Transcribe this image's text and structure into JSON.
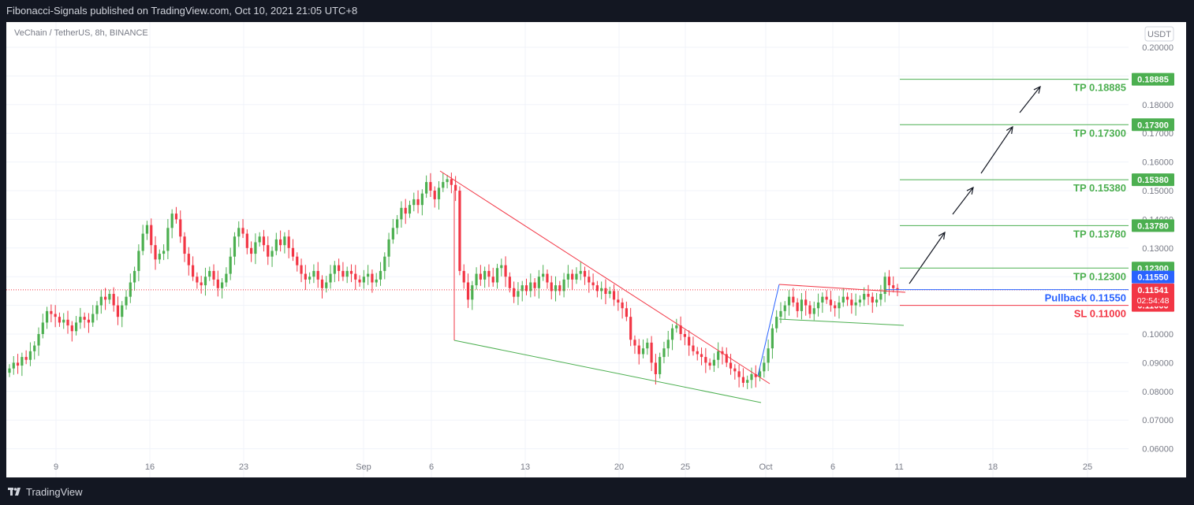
{
  "header": {
    "published_text": "Fibonacci-Signals published on TradingView.com, Oct 10, 2021 21:05 UTC+8"
  },
  "footer": {
    "brand": "TradingView",
    "logo_icon": "tradingview-logo-icon"
  },
  "chart_data": {
    "type": "candlestick",
    "symbol_label": "VeChain / TetherUS, 8h, BINANCE",
    "currency_badge": "USDT",
    "y_ticks": [
      "0.20000",
      "0.19000",
      "0.18000",
      "0.17000",
      "0.16000",
      "0.15000",
      "0.14000",
      "0.13000",
      "0.12000",
      "0.11000",
      "0.10000",
      "0.09000",
      "0.08000",
      "0.07000",
      "0.06000"
    ],
    "ylim": [
      0.0585,
      0.2055
    ],
    "x_ticks": [
      "9",
      "16",
      "23",
      "Sep",
      "6",
      "13",
      "20",
      "25",
      "Oct",
      "6",
      "11",
      "18",
      "25"
    ],
    "levels": [
      {
        "label": "TP 0.18885",
        "tag": "0.18885",
        "value": 0.18885,
        "color": "#4caf50"
      },
      {
        "label": "TP 0.17300",
        "tag": "0.17300",
        "value": 0.173,
        "color": "#4caf50"
      },
      {
        "label": "TP 0.15380",
        "tag": "0.15380",
        "value": 0.1538,
        "color": "#4caf50"
      },
      {
        "label": "TP 0.13780",
        "tag": "0.13780",
        "value": 0.1378,
        "color": "#4caf50"
      },
      {
        "label": "TP 0.12300",
        "tag": "0.12300",
        "value": 0.123,
        "color": "#4caf50"
      },
      {
        "label": "Pullback 0.11550",
        "tag": "0.11550",
        "value": 0.1155,
        "color": "#2962ff"
      },
      {
        "label": "SL 0.11000",
        "tag": "0.11000",
        "value": 0.11,
        "color": "#f23645"
      }
    ],
    "last_price": {
      "value": "0.11541",
      "countdown": "02:54:48",
      "color": "#f23645"
    },
    "colors": {
      "up": "#4caf50",
      "down": "#f23645",
      "blue": "#2962ff",
      "grid": "#f0f3fa"
    },
    "candles_close_path": [
      0.088,
      0.09,
      0.089,
      0.092,
      0.091,
      0.094,
      0.096,
      0.1,
      0.104,
      0.108,
      0.107,
      0.106,
      0.104,
      0.105,
      0.103,
      0.101,
      0.104,
      0.106,
      0.105,
      0.104,
      0.107,
      0.11,
      0.113,
      0.112,
      0.114,
      0.11,
      0.106,
      0.11,
      0.113,
      0.118,
      0.122,
      0.129,
      0.135,
      0.138,
      0.131,
      0.126,
      0.128,
      0.129,
      0.137,
      0.142,
      0.14,
      0.134,
      0.128,
      0.124,
      0.12,
      0.118,
      0.117,
      0.12,
      0.122,
      0.119,
      0.116,
      0.118,
      0.121,
      0.127,
      0.134,
      0.137,
      0.135,
      0.13,
      0.128,
      0.132,
      0.134,
      0.131,
      0.127,
      0.129,
      0.133,
      0.131,
      0.134,
      0.13,
      0.127,
      0.124,
      0.121,
      0.119,
      0.12,
      0.122,
      0.119,
      0.116,
      0.118,
      0.121,
      0.124,
      0.122,
      0.12,
      0.122,
      0.121,
      0.119,
      0.118,
      0.12,
      0.121,
      0.118,
      0.119,
      0.122,
      0.127,
      0.133,
      0.137,
      0.14,
      0.144,
      0.142,
      0.145,
      0.147,
      0.145,
      0.149,
      0.153,
      0.15,
      0.147,
      0.151,
      0.153,
      0.154,
      0.152,
      0.15,
      0.122,
      0.118,
      0.112,
      0.117,
      0.121,
      0.119,
      0.122,
      0.12,
      0.118,
      0.123,
      0.124,
      0.12,
      0.116,
      0.113,
      0.115,
      0.117,
      0.115,
      0.118,
      0.116,
      0.12,
      0.121,
      0.118,
      0.115,
      0.117,
      0.115,
      0.119,
      0.121,
      0.119,
      0.121,
      0.122,
      0.12,
      0.118,
      0.117,
      0.115,
      0.116,
      0.114,
      0.115,
      0.112,
      0.111,
      0.109,
      0.106,
      0.098,
      0.096,
      0.093,
      0.095,
      0.097,
      0.09,
      0.086,
      0.092,
      0.095,
      0.098,
      0.102,
      0.103,
      0.1,
      0.099,
      0.096,
      0.094,
      0.093,
      0.092,
      0.09,
      0.089,
      0.091,
      0.094,
      0.093,
      0.09,
      0.088,
      0.087,
      0.085,
      0.083,
      0.084,
      0.086,
      0.085,
      0.087,
      0.09,
      0.095,
      0.102,
      0.106,
      0.108,
      0.11,
      0.113,
      0.111,
      0.108,
      0.112,
      0.11,
      0.107,
      0.109,
      0.111,
      0.113,
      0.112,
      0.11,
      0.109,
      0.111,
      0.113,
      0.112,
      0.11,
      0.111,
      0.112,
      0.114,
      0.113,
      0.111,
      0.112,
      0.114,
      0.12,
      0.117,
      0.116,
      0.1154
    ]
  }
}
